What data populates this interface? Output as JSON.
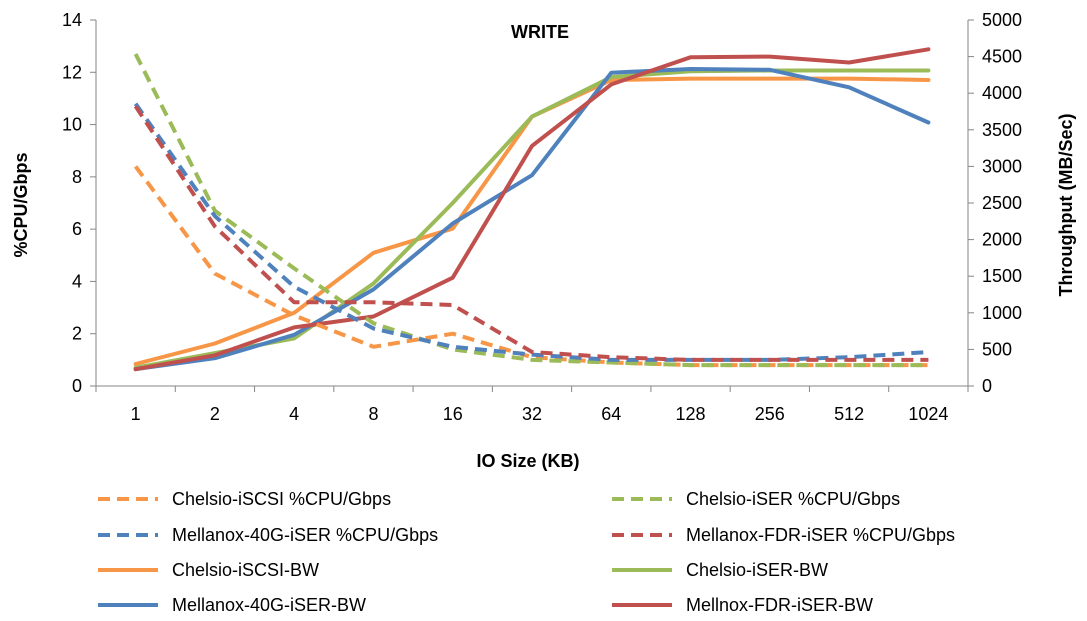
{
  "chart_data": {
    "type": "line",
    "title": "WRITE",
    "xlabel": "IO Size (KB)",
    "ylabel_left": "%CPU/Gbps",
    "ylabel_right": "Throughput (MB/Sec)",
    "ylim_left": [
      0,
      14
    ],
    "ylim_right": [
      0,
      5000
    ],
    "yticks_left": [
      "0",
      "2",
      "4",
      "6",
      "8",
      "10",
      "12",
      "14"
    ],
    "yticks_right": [
      "0",
      "500",
      "1000",
      "1500",
      "2000",
      "2500",
      "3000",
      "3500",
      "4000",
      "4500",
      "5000"
    ],
    "categories": [
      "1",
      "2",
      "4",
      "8",
      "16",
      "32",
      "64",
      "128",
      "256",
      "512",
      "1024"
    ],
    "legend_position": "bottom",
    "grid": false,
    "series": [
      {
        "name": "Chelsio-iSCSI %CPU/Gbps",
        "axis": "left",
        "style": "dashed",
        "color": "#F79646",
        "values": [
          8.4,
          4.3,
          2.7,
          1.5,
          2.0,
          1.1,
          0.9,
          0.8,
          0.8,
          0.8,
          0.8
        ]
      },
      {
        "name": "Chelsio-iSER %CPU/Gbps",
        "axis": "left",
        "style": "dashed",
        "color": "#9BBB59",
        "values": [
          12.7,
          6.7,
          4.5,
          2.4,
          1.4,
          1.0,
          0.9,
          0.8,
          0.8,
          0.8,
          0.8
        ]
      },
      {
        "name": "Mellanox-40G-iSER %CPU/Gbps",
        "axis": "left",
        "style": "dashed",
        "color": "#4F81BD",
        "values": [
          10.8,
          6.5,
          3.8,
          2.2,
          1.5,
          1.2,
          1.0,
          1.0,
          1.0,
          1.1,
          1.3
        ]
      },
      {
        "name": "Mellanox-FDR-iSER %CPU/Gbps",
        "axis": "left",
        "style": "dashed",
        "color": "#C0504D",
        "values": [
          10.7,
          6.1,
          3.2,
          3.2,
          3.1,
          1.3,
          1.1,
          1.0,
          1.0,
          1.0,
          1.0
        ]
      },
      {
        "name": "Chelsio-iSCSI-BW",
        "axis": "right",
        "style": "solid",
        "color": "#F79646",
        "values": [
          300,
          580,
          1000,
          1820,
          2150,
          3680,
          4180,
          4200,
          4200,
          4200,
          4180
        ]
      },
      {
        "name": "Chelsio-iSER-BW",
        "axis": "right",
        "style": "solid",
        "color": "#9BBB59",
        "values": [
          250,
          450,
          650,
          1400,
          2500,
          3680,
          4220,
          4300,
          4310,
          4310,
          4310
        ]
      },
      {
        "name": "Mellanox-40G-iSER-BW",
        "axis": "right",
        "style": "solid",
        "color": "#4F81BD",
        "values": [
          230,
          380,
          700,
          1320,
          2220,
          2880,
          4280,
          4330,
          4320,
          4080,
          3600
        ]
      },
      {
        "name": "Mellnox-FDR-iSER-BW",
        "axis": "right",
        "style": "solid",
        "color": "#C0504D",
        "values": [
          230,
          420,
          800,
          950,
          1480,
          3280,
          4120,
          4490,
          4500,
          4420,
          4600
        ]
      }
    ]
  }
}
